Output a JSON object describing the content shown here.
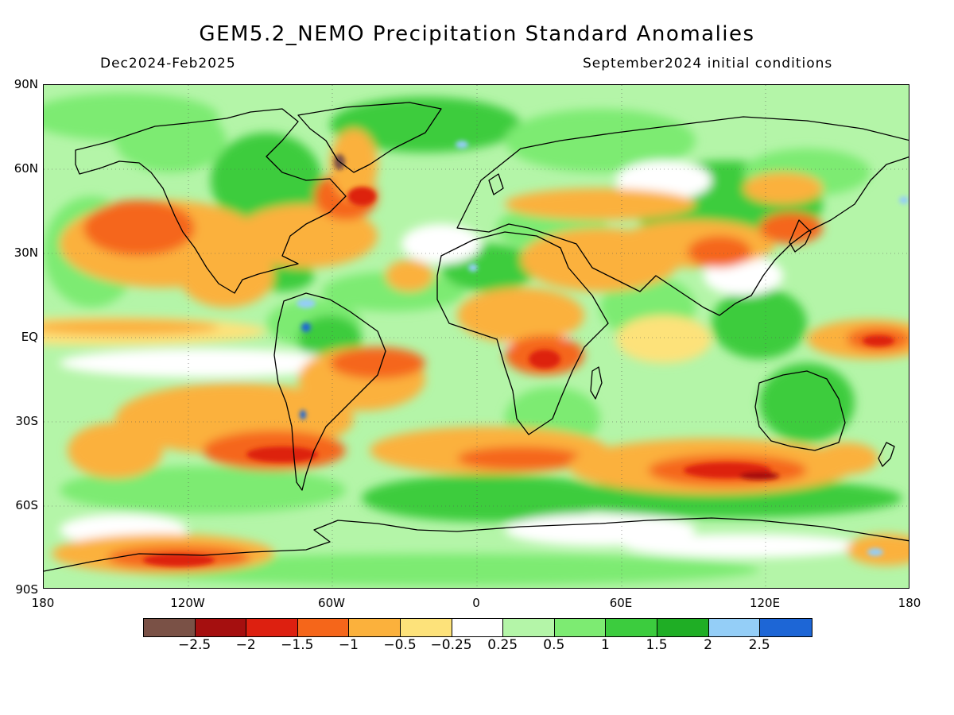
{
  "header": {
    "title": "GEM5.2_NEMO Precipitation Standard Anomalies",
    "period": "Dec2024-Feb2025",
    "initial_conditions": "September2024 initial conditions"
  },
  "axes": {
    "lat_labels": [
      "90N",
      "60N",
      "30N",
      "EQ",
      "30S",
      "60S",
      "90S"
    ],
    "lon_labels": [
      "180",
      "120W",
      "60W",
      "0",
      "60E",
      "120E",
      "180"
    ]
  },
  "colorbar": {
    "colors": [
      "#7a5146",
      "#a50f0f",
      "#dd2010",
      "#f5661a",
      "#fbb13c",
      "#fde27a",
      "#ffffff",
      "#b4f5a8",
      "#7deb72",
      "#3ccc3e",
      "#1fae25",
      "#94cef7",
      "#1d66d6"
    ],
    "labels": [
      "−2.5",
      "−2",
      "−1.5",
      "−1",
      "−0.5",
      "−0.25",
      "0.25",
      "0.5",
      "1",
      "1.5",
      "2",
      "2.5"
    ]
  }
}
